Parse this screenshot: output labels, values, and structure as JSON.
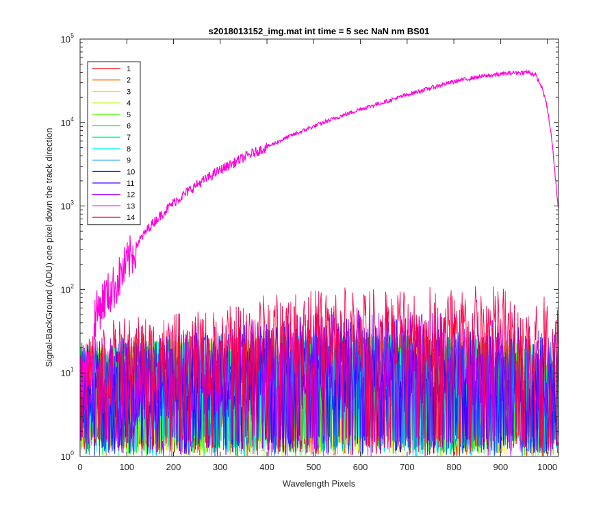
{
  "chart_data": {
    "type": "line",
    "title": "s2018013152_img.mat int time = 5 sec  NaN nm BS01",
    "xlabel": "Wavelength Pixels",
    "ylabel": "Signal-BackGround (ADU) one pixel down the track direction",
    "xlim": [
      0,
      1024
    ],
    "ylim": [
      1,
      100000
    ],
    "yscale": "log",
    "grid": false,
    "legend_position": "top-left",
    "x_ticks": [
      "0",
      "100",
      "200",
      "300",
      "400",
      "500",
      "600",
      "700",
      "800",
      "900",
      "1000"
    ],
    "y_ticks": [
      {
        "base": "10",
        "exp": "0"
      },
      {
        "base": "10",
        "exp": "1"
      },
      {
        "base": "10",
        "exp": "2"
      },
      {
        "base": "10",
        "exp": "3"
      },
      {
        "base": "10",
        "exp": "4"
      },
      {
        "base": "10",
        "exp": "5"
      }
    ],
    "series": [
      {
        "name": "1",
        "color": "#ff0000",
        "level": "noise",
        "x": [
          0,
          200,
          400,
          600,
          800,
          1024
        ],
        "y": [
          8,
          10,
          10,
          12,
          10,
          8
        ]
      },
      {
        "name": "2",
        "color": "#ff6d00",
        "level": "noise",
        "x": [
          0,
          200,
          400,
          600,
          800,
          1024
        ],
        "y": [
          8,
          10,
          11,
          12,
          11,
          8
        ]
      },
      {
        "name": "3",
        "color": "#ffdb00",
        "level": "noise",
        "x": [
          0,
          200,
          400,
          600,
          800,
          1024
        ],
        "y": [
          9,
          11,
          11,
          12,
          11,
          9
        ]
      },
      {
        "name": "4",
        "color": "#b6ff00",
        "level": "noise",
        "x": [
          0,
          200,
          400,
          600,
          800,
          1024
        ],
        "y": [
          9,
          11,
          12,
          12,
          11,
          9
        ]
      },
      {
        "name": "5",
        "color": "#49ff00",
        "level": "noise",
        "x": [
          0,
          200,
          400,
          600,
          800,
          1024
        ],
        "y": [
          9,
          11,
          12,
          13,
          12,
          9
        ]
      },
      {
        "name": "6",
        "color": "#00ff24",
        "level": "noise",
        "x": [
          0,
          200,
          400,
          600,
          800,
          1024
        ],
        "y": [
          9,
          11,
          12,
          13,
          12,
          9
        ]
      },
      {
        "name": "7",
        "color": "#00ff92",
        "level": "noise",
        "x": [
          0,
          200,
          400,
          600,
          800,
          1024
        ],
        "y": [
          9,
          11,
          12,
          13,
          12,
          9
        ]
      },
      {
        "name": "8",
        "color": "#00ffff",
        "level": "noise",
        "x": [
          0,
          200,
          400,
          600,
          800,
          1024
        ],
        "y": [
          9,
          11,
          12,
          13,
          12,
          9
        ]
      },
      {
        "name": "9",
        "color": "#0092ff",
        "level": "noise",
        "x": [
          0,
          200,
          400,
          600,
          800,
          1024
        ],
        "y": [
          9,
          12,
          13,
          15,
          13,
          10
        ]
      },
      {
        "name": "10",
        "color": "#0024ff",
        "level": "noise",
        "x": [
          0,
          200,
          400,
          600,
          800,
          1024
        ],
        "y": [
          10,
          13,
          15,
          18,
          16,
          11
        ]
      },
      {
        "name": "11",
        "color": "#4900ff",
        "level": "noise",
        "x": [
          0,
          200,
          400,
          600,
          800,
          1024
        ],
        "y": [
          10,
          14,
          18,
          22,
          20,
          13
        ]
      },
      {
        "name": "12",
        "color": "#b600ff",
        "level": "noise",
        "x": [
          0,
          200,
          400,
          600,
          800,
          1024
        ],
        "y": [
          11,
          15,
          20,
          25,
          22,
          14
        ]
      },
      {
        "name": "13",
        "color": "#ff00db",
        "level": "signal",
        "x": [
          30,
          50,
          75,
          100,
          125,
          150,
          200,
          250,
          300,
          350,
          400,
          450,
          500,
          550,
          600,
          650,
          700,
          750,
          800,
          850,
          900,
          930,
          960,
          975,
          990,
          1000,
          1010,
          1020,
          1024
        ],
        "y": [
          45,
          75,
          110,
          200,
          370,
          580,
          1100,
          1800,
          2700,
          3800,
          5100,
          6900,
          9000,
          11500,
          14500,
          17500,
          21500,
          26000,
          31000,
          35000,
          38000,
          39500,
          40000,
          37000,
          25000,
          15000,
          6000,
          1500,
          900
        ]
      },
      {
        "name": "14",
        "color": "#ff0049",
        "level": "noise",
        "x": [
          0,
          50,
          100,
          200,
          300,
          400,
          500,
          600,
          700,
          800,
          900,
          1000,
          1024
        ],
        "y": [
          15,
          18,
          20,
          22,
          25,
          38,
          42,
          48,
          50,
          48,
          48,
          35,
          30
        ]
      }
    ]
  }
}
